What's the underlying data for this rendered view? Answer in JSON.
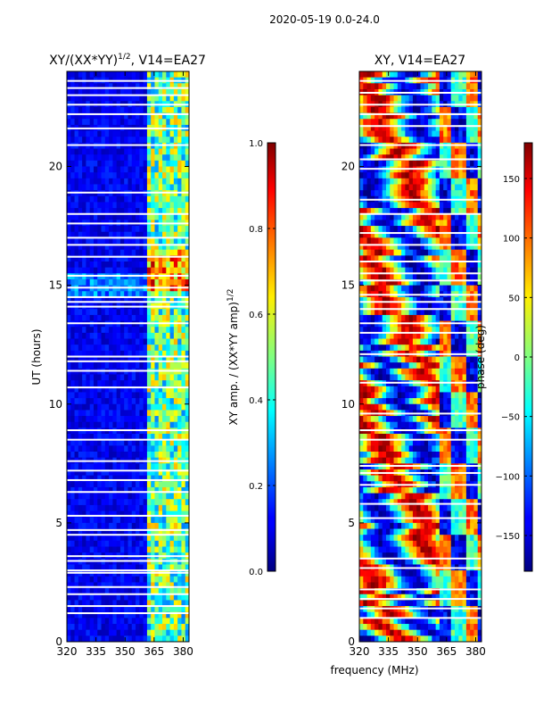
{
  "suptitle": "2020-05-19 0.0-24.0",
  "chart_data": [
    {
      "type": "heatmap",
      "title": "XY/(XX*YY)",
      "title_exponent": "1/2",
      "title_suffix": ", V14=EA27",
      "xlabel": "",
      "ylabel": "UT (hours)",
      "xlim": [
        320,
        383
      ],
      "ylim": [
        0,
        24
      ],
      "x_ticks": [
        320,
        335,
        350,
        365,
        380
      ],
      "y_ticks": [
        0,
        5,
        10,
        15,
        20
      ],
      "colorbar": {
        "label": "XY amp. / (XX*YY amp)",
        "label_exponent": "1/2",
        "range": [
          0.0,
          1.0
        ],
        "ticks": [
          "0.0",
          "0.2",
          "0.4",
          "0.6",
          "0.8",
          "1.0"
        ],
        "tick_values": [
          0.0,
          0.2,
          0.4,
          0.6,
          0.8,
          1.0
        ],
        "colormap": "jet"
      },
      "structure": "low amplitude (~0.1) below 361 MHz; patchy 0.3-0.7 band at 361-383 MHz; higher values near UT 15-16 h",
      "blank_rows_ut": [
        1.2,
        1.5,
        2.0,
        2.3,
        2.9,
        3.0,
        3.4,
        3.6,
        4.5,
        4.7,
        5.3,
        6.3,
        6.8,
        7.2,
        7.6,
        8.5,
        8.9,
        10.7,
        11.4,
        11.8,
        12.0,
        13.4,
        14.1,
        14.3,
        14.5,
        14.9,
        15.4,
        16.2,
        16.7,
        17.0,
        17.6,
        18.0,
        18.9,
        20.9,
        21.6,
        22.2,
        22.6,
        23.0,
        23.3,
        23.6
      ]
    },
    {
      "type": "heatmap",
      "title": "XY, V14=EA27",
      "xlabel": "frequency (MHz)",
      "ylabel": "",
      "xlim": [
        320,
        383
      ],
      "ylim": [
        0,
        24
      ],
      "x_ticks": [
        320,
        335,
        350,
        365,
        380
      ],
      "y_ticks": [
        0,
        5,
        10,
        15,
        20
      ],
      "colorbar": {
        "label": "phase (deg)",
        "range": [
          -180,
          180
        ],
        "ticks": [
          "150",
          "100",
          "50",
          "0",
          "−50",
          "−100",
          "−150"
        ],
        "tick_values": [
          150,
          100,
          50,
          0,
          -50,
          -100,
          -150
        ],
        "colormap": "jet"
      },
      "structure": "phase varies across full range; blocky structure in 361-383 MHz band; red/blue patches below 361 MHz",
      "blank_rows_ut": [
        1.0,
        1.4,
        1.8,
        2.2,
        3.1,
        3.5,
        5.2,
        5.8,
        6.6,
        7.1,
        7.4,
        8.5,
        8.9,
        9.6,
        10.9,
        12.1,
        13.0,
        13.4,
        14.0,
        14.3,
        14.6,
        15.2,
        15.5,
        16.0,
        16.7,
        17.2,
        18.0,
        18.6,
        19.9,
        20.3,
        20.9,
        21.7,
        22.2,
        22.6,
        23.1,
        23.6
      ]
    }
  ]
}
